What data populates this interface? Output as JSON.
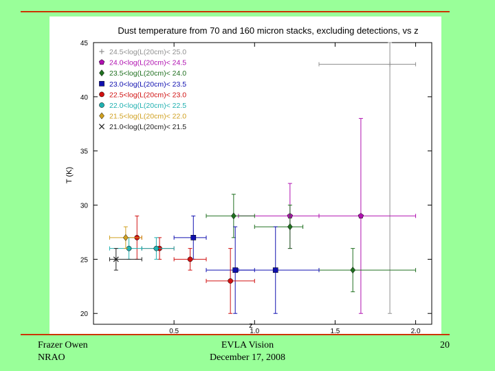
{
  "footer": {
    "left_line1": "Frazer Owen",
    "left_line2": "NRAO",
    "center_line1": "EVLA Vision",
    "center_line2": "December 17, 2008",
    "page_number": "20"
  },
  "colors": {
    "background": "#99ff99",
    "rule": "#cc3300"
  },
  "chart_data": {
    "type": "scatter",
    "title": "Dust temperature from 70 and 160 micron stacks, excluding detections, vs z",
    "xlabel": "z",
    "ylabel": "T (K)",
    "xlim": [
      0.0,
      2.1
    ],
    "ylim": [
      19,
      45
    ],
    "xticks": [
      0.5,
      1.0,
      1.5,
      2.0
    ],
    "xtick_labels": [
      "0.5",
      "1.0",
      "1.5",
      "2.0"
    ],
    "yticks": [
      20,
      25,
      30,
      35,
      40,
      45
    ],
    "ytick_labels": [
      "20",
      "25",
      "30",
      "35",
      "40",
      "45"
    ],
    "legend_position": "top-left",
    "series": [
      {
        "name": "24.5<log(L(20cm)< 25.0",
        "color": "#909090",
        "marker": "plus",
        "points": [
          {
            "x": 1.84,
            "y": 43,
            "xerr": [
              1.4,
              2.0
            ],
            "yerr": [
              20,
              45
            ]
          }
        ]
      },
      {
        "name": "24.0<log(L(20cm)< 24.5",
        "color": "#b010b0",
        "marker": "pentagon",
        "points": [
          {
            "x": 1.22,
            "y": 29,
            "xerr": [
              0.9,
              1.4
            ],
            "yerr": [
              26,
              32
            ]
          },
          {
            "x": 1.66,
            "y": 29,
            "xerr": [
              1.4,
              2.0
            ],
            "yerr": [
              20,
              38
            ]
          }
        ]
      },
      {
        "name": "23.5<log(L(20cm)< 24.0",
        "color": "#207020",
        "marker": "diamond",
        "points": [
          {
            "x": 0.87,
            "y": 29,
            "xerr": [
              0.7,
              1.0
            ],
            "yerr": [
              27,
              31
            ]
          },
          {
            "x": 1.22,
            "y": 28,
            "xerr": [
              1.0,
              1.3
            ],
            "yerr": [
              26,
              30
            ]
          },
          {
            "x": 1.61,
            "y": 24,
            "xerr": [
              1.4,
              2.0
            ],
            "yerr": [
              22,
              26
            ]
          }
        ]
      },
      {
        "name": "23.0<log(L(20cm)< 23.5",
        "color": "#1010b0",
        "marker": "square",
        "points": [
          {
            "x": 0.62,
            "y": 27,
            "xerr": [
              0.5,
              0.7
            ],
            "yerr": [
              25,
              29
            ]
          },
          {
            "x": 0.88,
            "y": 24,
            "xerr": [
              0.7,
              1.0
            ],
            "yerr": [
              20,
              28
            ]
          },
          {
            "x": 1.13,
            "y": 24,
            "xerr": [
              0.9,
              1.4
            ],
            "yerr": [
              20,
              28
            ]
          }
        ]
      },
      {
        "name": "22.5<log(L(20cm)< 23.0",
        "color": "#d01010",
        "marker": "circle",
        "points": [
          {
            "x": 0.27,
            "y": 27,
            "xerr": [
              0.2,
              0.3
            ],
            "yerr": [
              25,
              29
            ]
          },
          {
            "x": 0.41,
            "y": 26,
            "xerr": [
              0.3,
              0.5
            ],
            "yerr": [
              25,
              27
            ]
          },
          {
            "x": 0.6,
            "y": 25,
            "xerr": [
              0.5,
              0.7
            ],
            "yerr": [
              24,
              26
            ]
          },
          {
            "x": 0.85,
            "y": 23,
            "xerr": [
              0.7,
              1.0
            ],
            "yerr": [
              20,
              26
            ]
          }
        ]
      },
      {
        "name": "22.0<log(L(20cm)< 22.5",
        "color": "#20b0b0",
        "marker": "circle",
        "points": [
          {
            "x": 0.22,
            "y": 26,
            "xerr": [
              0.1,
              0.3
            ],
            "yerr": [
              25,
              27
            ]
          },
          {
            "x": 0.39,
            "y": 26,
            "xerr": [
              0.3,
              0.5
            ],
            "yerr": [
              25,
              27
            ]
          }
        ]
      },
      {
        "name": "21.5<log(L(20cm)< 22.0",
        "color": "#d0a020",
        "marker": "diamond",
        "points": [
          {
            "x": 0.2,
            "y": 27,
            "xerr": [
              0.1,
              0.3
            ],
            "yerr": [
              26,
              28
            ]
          }
        ]
      },
      {
        "name": "21.0<log(L(20cm)< 21.5",
        "color": "#202020",
        "marker": "cross",
        "points": [
          {
            "x": 0.14,
            "y": 25,
            "xerr": [
              0.1,
              0.3
            ],
            "yerr": [
              24,
              26
            ]
          }
        ]
      }
    ]
  }
}
